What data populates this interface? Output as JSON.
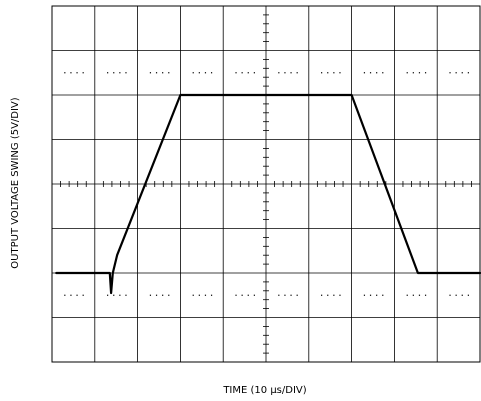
{
  "chart_data": {
    "type": "line",
    "xlabel": "TIME (10 μs/DIV)",
    "ylabel": "OUTPUT VOLTAGE SWING (5V/DIV)",
    "x_units": "divisions (10 μs/div)",
    "y_units": "divisions (5 V/div), 0 = center graticule line",
    "xlim": [
      0,
      10
    ],
    "ylim": [
      -4,
      4
    ],
    "grid": true,
    "series": [
      {
        "x": [
          0.1,
          1.35,
          1.38,
          1.42,
          1.52,
          3.0,
          7.0,
          8.55,
          8.65,
          10.0
        ],
        "y": [
          -2.0,
          -2.0,
          -2.45,
          -2.0,
          -1.6,
          2.0,
          2.0,
          -2.0,
          -2.0,
          -2.0
        ]
      }
    ]
  }
}
